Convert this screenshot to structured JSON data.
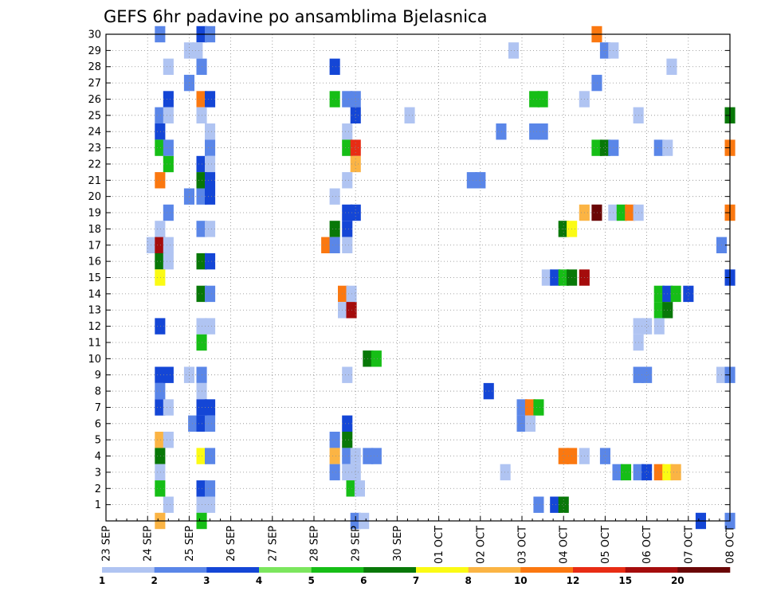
{
  "chart_data": {
    "type": "heatmap",
    "title": "GEFS 6hr padavine po ansamblima Bjelasnica",
    "xlabel": "",
    "ylabel": "",
    "grid": true,
    "x_ticks": [
      "23 SEP",
      "24 SEP",
      "25 SEP",
      "26 SEP",
      "27 SEP",
      "28 SEP",
      "29 SEP",
      "30 SEP",
      "01 OCT",
      "02 OCT",
      "03 OCT",
      "04 OCT",
      "05 OCT",
      "06 OCT",
      "07 OCT",
      "08 OCT"
    ],
    "y_ticks": [
      "1",
      "2",
      "3",
      "4",
      "5",
      "6",
      "7",
      "8",
      "9",
      "10",
      "11",
      "12",
      "13",
      "14",
      "15",
      "16",
      "17",
      "18",
      "19",
      "20",
      "21",
      "22",
      "23",
      "24",
      "25",
      "26",
      "27",
      "28",
      "29",
      "30"
    ],
    "x_range_days": [
      0,
      15
    ],
    "y_range": [
      0,
      30
    ],
    "legend": {
      "placement": "bottom",
      "levels": [
        "1",
        "2",
        "3",
        "4",
        "5",
        "6",
        "7",
        "8",
        "10",
        "12",
        "15",
        "20"
      ],
      "colors": [
        "#b0c4f2",
        "#5a86e8",
        "#1446d6",
        "#7ce65e",
        "#16be16",
        "#087808",
        "#fbfb14",
        "#fbb444",
        "#fb7810",
        "#e82c14",
        "#a50c0c",
        "#6a0606"
      ]
    },
    "cells": [
      [
        30,
        1.3,
        2
      ],
      [
        30,
        2.3,
        3
      ],
      [
        30,
        2.5,
        2
      ],
      [
        30,
        11.8,
        10
      ],
      [
        29,
        2.0,
        1
      ],
      [
        29,
        2.2,
        1
      ],
      [
        29,
        9.8,
        1
      ],
      [
        29,
        12.0,
        2
      ],
      [
        29,
        12.2,
        1
      ],
      [
        28,
        1.5,
        1
      ],
      [
        28,
        2.3,
        2
      ],
      [
        28,
        5.5,
        3
      ],
      [
        28,
        13.6,
        1
      ],
      [
        27,
        2.0,
        2
      ],
      [
        27,
        11.8,
        2
      ],
      [
        26,
        1.5,
        3
      ],
      [
        26,
        2.3,
        10
      ],
      [
        26,
        2.5,
        3
      ],
      [
        26,
        5.5,
        5
      ],
      [
        26,
        5.8,
        2
      ],
      [
        26,
        6.0,
        2
      ],
      [
        26,
        10.3,
        5
      ],
      [
        26,
        10.5,
        5
      ],
      [
        26,
        11.5,
        1
      ],
      [
        25,
        1.3,
        2
      ],
      [
        25,
        1.5,
        1
      ],
      [
        25,
        2.3,
        1
      ],
      [
        25,
        6.0,
        3
      ],
      [
        25,
        7.3,
        1
      ],
      [
        25,
        12.8,
        1
      ],
      [
        25,
        15.0,
        6
      ],
      [
        24,
        1.3,
        3
      ],
      [
        24,
        2.5,
        1
      ],
      [
        24,
        5.8,
        1
      ],
      [
        24,
        9.5,
        2
      ],
      [
        24,
        10.3,
        2
      ],
      [
        24,
        10.5,
        2
      ],
      [
        23,
        1.3,
        5
      ],
      [
        23,
        1.5,
        2
      ],
      [
        23,
        2.5,
        2
      ],
      [
        23,
        5.8,
        5
      ],
      [
        23,
        6.0,
        12
      ],
      [
        23,
        11.8,
        5
      ],
      [
        23,
        12.0,
        6
      ],
      [
        23,
        12.2,
        2
      ],
      [
        23,
        13.3,
        2
      ],
      [
        23,
        13.5,
        1
      ],
      [
        23,
        15.0,
        10
      ],
      [
        22,
        1.5,
        5
      ],
      [
        22,
        2.3,
        3
      ],
      [
        22,
        2.5,
        1
      ],
      [
        22,
        6.0,
        8
      ],
      [
        21,
        1.3,
        10
      ],
      [
        21,
        2.3,
        6
      ],
      [
        21,
        2.5,
        3
      ],
      [
        21,
        5.8,
        1
      ],
      [
        21,
        8.8,
        2
      ],
      [
        21,
        9.0,
        2
      ],
      [
        20,
        2.0,
        2
      ],
      [
        20,
        2.3,
        2
      ],
      [
        20,
        2.5,
        3
      ],
      [
        20,
        5.5,
        1
      ],
      [
        19,
        1.5,
        2
      ],
      [
        19,
        6.0,
        3
      ],
      [
        19,
        5.8,
        3
      ],
      [
        19,
        11.5,
        8
      ],
      [
        19,
        11.8,
        20
      ],
      [
        19,
        12.2,
        1
      ],
      [
        19,
        12.4,
        5
      ],
      [
        19,
        12.6,
        10
      ],
      [
        19,
        12.8,
        1
      ],
      [
        19,
        15.0,
        10
      ],
      [
        18,
        1.3,
        1
      ],
      [
        18,
        2.3,
        2
      ],
      [
        18,
        2.5,
        1
      ],
      [
        18,
        5.5,
        6
      ],
      [
        18,
        5.8,
        3
      ],
      [
        18,
        11.0,
        6
      ],
      [
        18,
        11.2,
        7
      ],
      [
        17,
        1.1,
        1
      ],
      [
        17,
        1.3,
        15
      ],
      [
        17,
        1.5,
        1
      ],
      [
        17,
        5.3,
        10
      ],
      [
        17,
        5.5,
        2
      ],
      [
        17,
        5.8,
        1
      ],
      [
        17,
        14.8,
        2
      ],
      [
        16,
        1.3,
        6
      ],
      [
        16,
        1.5,
        1
      ],
      [
        16,
        2.3,
        6
      ],
      [
        16,
        2.5,
        3
      ],
      [
        15,
        1.3,
        7
      ],
      [
        15,
        10.6,
        1
      ],
      [
        15,
        10.8,
        3
      ],
      [
        15,
        11.0,
        5
      ],
      [
        15,
        11.2,
        6
      ],
      [
        15,
        11.5,
        15
      ],
      [
        15,
        15.0,
        3
      ],
      [
        14,
        2.3,
        6
      ],
      [
        14,
        2.5,
        2
      ],
      [
        14,
        5.7,
        10
      ],
      [
        14,
        5.9,
        1
      ],
      [
        14,
        13.3,
        5
      ],
      [
        14,
        13.5,
        3
      ],
      [
        14,
        13.7,
        5
      ],
      [
        14,
        14.0,
        3
      ],
      [
        13,
        5.7,
        1
      ],
      [
        13,
        5.9,
        15
      ],
      [
        13,
        13.3,
        5
      ],
      [
        13,
        13.5,
        6
      ],
      [
        12,
        1.3,
        3
      ],
      [
        12,
        2.3,
        1
      ],
      [
        12,
        2.5,
        1
      ],
      [
        12,
        12.8,
        1
      ],
      [
        12,
        13.0,
        1
      ],
      [
        12,
        13.3,
        1
      ],
      [
        11,
        2.3,
        5
      ],
      [
        11,
        12.8,
        1
      ],
      [
        10,
        6.3,
        6
      ],
      [
        10,
        6.5,
        5
      ],
      [
        9,
        1.3,
        3
      ],
      [
        9,
        1.5,
        3
      ],
      [
        9,
        2.0,
        1
      ],
      [
        9,
        2.3,
        2
      ],
      [
        9,
        5.8,
        1
      ],
      [
        9,
        12.8,
        2
      ],
      [
        9,
        13.0,
        2
      ],
      [
        9,
        14.8,
        1
      ],
      [
        9,
        15.0,
        2
      ],
      [
        8,
        1.3,
        2
      ],
      [
        8,
        2.3,
        1
      ],
      [
        8,
        9.2,
        3
      ],
      [
        7,
        1.3,
        3
      ],
      [
        7,
        1.5,
        1
      ],
      [
        7,
        2.3,
        3
      ],
      [
        7,
        2.5,
        3
      ],
      [
        7,
        10.0,
        2
      ],
      [
        7,
        10.2,
        10
      ],
      [
        7,
        10.4,
        5
      ],
      [
        6,
        2.1,
        2
      ],
      [
        6,
        2.3,
        3
      ],
      [
        6,
        2.5,
        2
      ],
      [
        6,
        5.8,
        3
      ],
      [
        6,
        10.0,
        2
      ],
      [
        6,
        10.2,
        1
      ],
      [
        5,
        1.3,
        8
      ],
      [
        5,
        1.5,
        1
      ],
      [
        5,
        5.5,
        2
      ],
      [
        5,
        5.8,
        6
      ],
      [
        4,
        1.3,
        6
      ],
      [
        4,
        2.3,
        7
      ],
      [
        4,
        2.5,
        2
      ],
      [
        4,
        5.5,
        8
      ],
      [
        4,
        5.8,
        2
      ],
      [
        4,
        6.0,
        1
      ],
      [
        4,
        6.3,
        2
      ],
      [
        4,
        6.5,
        2
      ],
      [
        4,
        11.0,
        10
      ],
      [
        4,
        11.2,
        10
      ],
      [
        4,
        11.5,
        1
      ],
      [
        4,
        12.0,
        2
      ],
      [
        3,
        1.3,
        1
      ],
      [
        3,
        5.5,
        2
      ],
      [
        3,
        5.8,
        1
      ],
      [
        3,
        6.0,
        1
      ],
      [
        3,
        9.6,
        1
      ],
      [
        3,
        12.3,
        2
      ],
      [
        3,
        12.5,
        5
      ],
      [
        3,
        12.8,
        2
      ],
      [
        3,
        13.0,
        3
      ],
      [
        3,
        13.3,
        10
      ],
      [
        3,
        13.5,
        7
      ],
      [
        3,
        13.7,
        8
      ],
      [
        2,
        1.3,
        5
      ],
      [
        2,
        2.3,
        3
      ],
      [
        2,
        2.5,
        2
      ],
      [
        2,
        5.9,
        5
      ],
      [
        2,
        6.1,
        1
      ],
      [
        1,
        1.5,
        1
      ],
      [
        1,
        2.3,
        1
      ],
      [
        1,
        2.5,
        1
      ],
      [
        1,
        10.4,
        2
      ],
      [
        1,
        10.8,
        3
      ],
      [
        1,
        11.0,
        6
      ],
      [
        0,
        1.3,
        8
      ],
      [
        0,
        2.3,
        5
      ],
      [
        0,
        6.0,
        2
      ],
      [
        0,
        6.2,
        1
      ],
      [
        0,
        14.3,
        3
      ],
      [
        0,
        15.0,
        2
      ]
    ]
  }
}
